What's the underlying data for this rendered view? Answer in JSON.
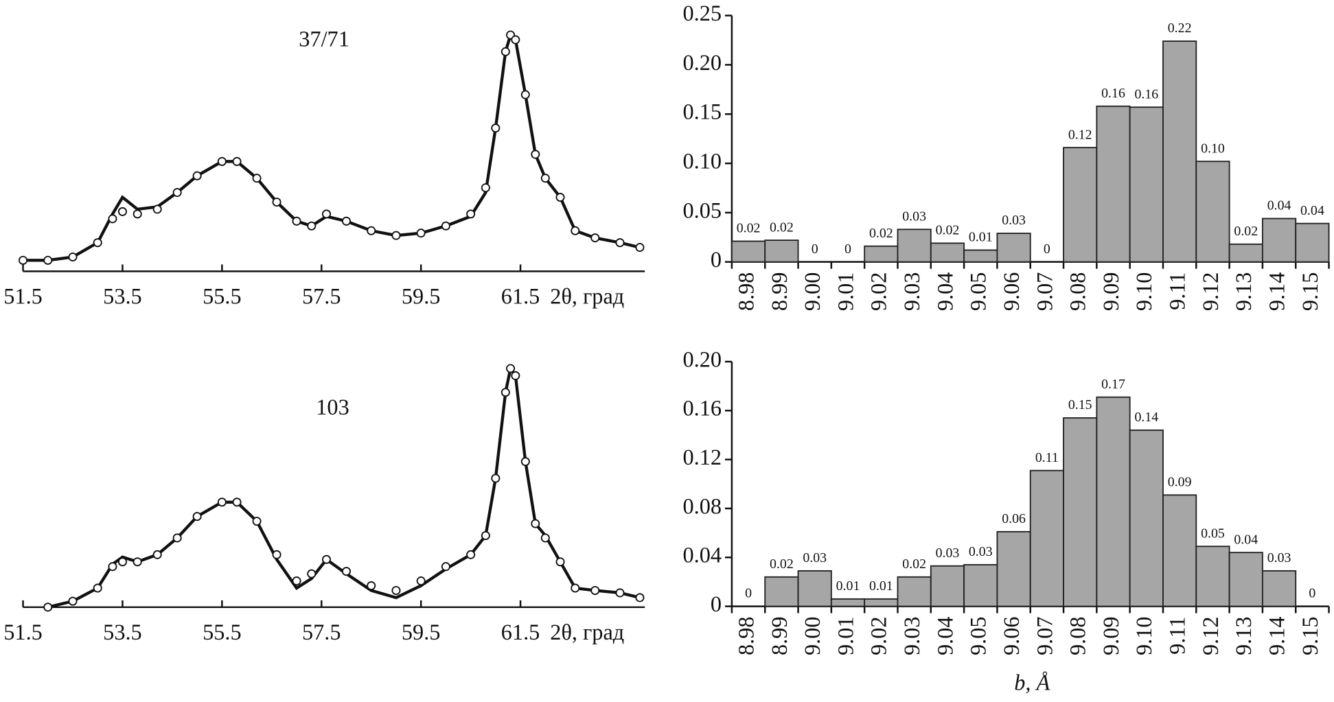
{
  "chart_data": [
    {
      "type": "xrd",
      "annotation": "37/71",
      "x_label": "2θ, град",
      "x": [
        51.5,
        52.0,
        52.5,
        53.0,
        53.3,
        53.5,
        53.8,
        54.2,
        54.6,
        55.0,
        55.5,
        55.8,
        56.2,
        56.6,
        57.0,
        57.3,
        57.6,
        58.0,
        58.5,
        59.0,
        59.5,
        60.0,
        60.5,
        60.8,
        61.0,
        61.2,
        61.3,
        61.4,
        61.6,
        61.8,
        62.0,
        62.3,
        62.6,
        63.0,
        63.5,
        63.9
      ],
      "series": [
        {
          "marker": "line",
          "color": "#111111",
          "values": [
            4.6,
            4.6,
            6,
            12,
            24,
            31,
            26,
            27,
            33,
            40,
            46,
            46,
            39,
            29,
            21,
            19,
            23,
            21,
            17,
            15,
            16,
            19,
            23,
            33,
            60,
            92,
            99,
            97,
            74,
            49,
            39,
            31,
            17,
            14,
            12,
            10
          ]
        },
        {
          "marker": "circle",
          "color": "#111111",
          "values": [
            4.6,
            4.6,
            6,
            12,
            22,
            25,
            24,
            26,
            33,
            40,
            46,
            46,
            39,
            29,
            21,
            19,
            24,
            21,
            17,
            15,
            16,
            19,
            24,
            35,
            60,
            92,
            99,
            97,
            74,
            49,
            39,
            31,
            17,
            14,
            12,
            10
          ]
        }
      ],
      "xlim": [
        51.5,
        64
      ],
      "xticks": [
        51.5,
        53.5,
        55.5,
        57.5,
        59.5,
        61.5
      ],
      "ylim": [
        0,
        100
      ]
    },
    {
      "type": "bar",
      "categories": [
        "8.98",
        "8.99",
        "9.00",
        "9.01",
        "9.02",
        "9.03",
        "9.04",
        "9.05",
        "9.06",
        "9.07",
        "9.08",
        "9.09",
        "9.10",
        "9.11",
        "9.12",
        "9.13",
        "9.14",
        "9.15"
      ],
      "values": [
        0.021,
        0.022,
        0,
        0,
        0.016,
        0.033,
        0.019,
        0.012,
        0.029,
        0,
        0.116,
        0.158,
        0.157,
        0.224,
        0.102,
        0.018,
        0.044,
        0.039
      ],
      "value_labels": [
        "0.02",
        "0.02",
        "0",
        "0",
        "0.02",
        "0.03",
        "0.02",
        "0.01",
        "0.03",
        "0",
        "0.12",
        "0.16",
        "0.16",
        "0.22",
        "0.10",
        "0.02",
        "0.04",
        "0.04"
      ],
      "color": "#a6a6a6",
      "ylim": [
        0,
        0.25
      ],
      "yticks": [
        0,
        0.05,
        {
          "value": 0.1,
          "label": "0.10"
        },
        0.15,
        {
          "value": 0.2,
          "label": "0.20"
        },
        0.25
      ]
    },
    {
      "type": "xrd",
      "annotation": "103",
      "x_label": "2θ, град",
      "x": [
        52.0,
        52.5,
        53.0,
        53.3,
        53.5,
        53.8,
        54.2,
        54.6,
        55.0,
        55.5,
        55.8,
        56.2,
        56.6,
        57.0,
        57.3,
        57.6,
        58.0,
        58.5,
        59.0,
        59.5,
        60.0,
        60.5,
        60.8,
        61.0,
        61.2,
        61.3,
        61.4,
        61.6,
        61.8,
        62.0,
        62.3,
        62.6,
        63.0,
        63.5,
        63.9
      ],
      "series": [
        {
          "marker": "line",
          "color": "#111111",
          "values": [
            0,
            2.5,
            8,
            18,
            21,
            19,
            22,
            29,
            38,
            44,
            44,
            36,
            20,
            8,
            12,
            20,
            14,
            7,
            4,
            9,
            16,
            22,
            30,
            54,
            90,
            100,
            97,
            61,
            35,
            30,
            19,
            8,
            7,
            6,
            4
          ]
        },
        {
          "marker": "circle",
          "color": "#111111",
          "values": [
            0,
            2.5,
            8,
            17,
            19,
            19,
            22,
            29,
            38,
            44,
            44,
            36,
            22,
            11,
            14,
            20,
            15,
            9,
            7,
            11,
            17,
            22,
            30,
            54,
            90,
            100,
            97,
            61,
            35,
            29,
            19,
            8,
            7,
            6,
            4
          ]
        }
      ],
      "xlim": [
        51.5,
        64
      ],
      "xticks": [
        51.5,
        53.5,
        55.5,
        57.5,
        59.5,
        61.5
      ],
      "ylim": [
        0,
        100
      ]
    },
    {
      "type": "bar",
      "x_label": "b, Å",
      "categories": [
        "8.98",
        "8.99",
        "9.00",
        "9.01",
        "9.02",
        "9.03",
        "9.04",
        "9.05",
        "9.06",
        "9.07",
        "9.08",
        "9.09",
        "9.10",
        "9.11",
        "9.12",
        "9.13",
        "9.14",
        "9.15"
      ],
      "values": [
        0,
        0.024,
        0.029,
        0.006,
        0.006,
        0.024,
        0.033,
        0.034,
        0.061,
        0.111,
        0.154,
        0.171,
        0.144,
        0.091,
        0.049,
        0.044,
        0.029,
        0
      ],
      "value_labels": [
        "0",
        "0.02",
        "0.03",
        "0.01",
        "0.01",
        "0.02",
        "0.03",
        "0.03",
        "0.06",
        "0.11",
        "0.15",
        "0.17",
        "0.14",
        "0.09",
        "0.05",
        "0.04",
        "0.03",
        "0"
      ],
      "color": "#a6a6a6",
      "ylim": [
        0,
        0.2
      ],
      "yticks": [
        0,
        0.04,
        0.08,
        0.12,
        0.16,
        {
          "value": 0.2,
          "label": "0.20"
        }
      ]
    }
  ]
}
